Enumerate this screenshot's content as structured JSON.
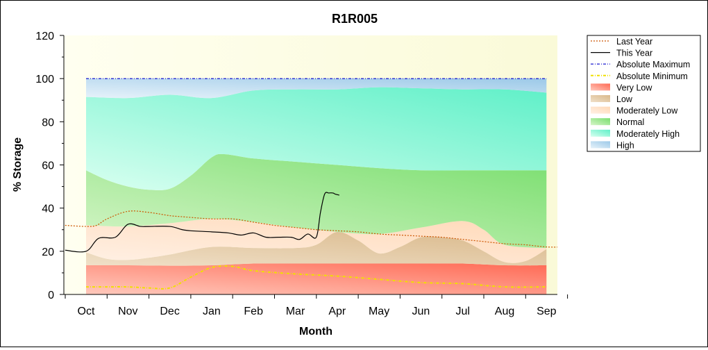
{
  "chart_data": {
    "type": "area",
    "title": "R1R005",
    "xlabel": "Month",
    "ylabel": "% Storage",
    "categories": [
      "Oct",
      "Nov",
      "Dec",
      "Jan",
      "Feb",
      "Mar",
      "Apr",
      "May",
      "Jun",
      "Jul",
      "Aug",
      "Sep"
    ],
    "ylim": [
      0,
      120
    ],
    "yticks": [
      0,
      20,
      40,
      60,
      80,
      100,
      120
    ],
    "grid": false,
    "legend_position": "right",
    "band_colors": {
      "very_low": "#ff6a55",
      "low": "#d9b88a",
      "moderately_low": "#ffd9b8",
      "normal": "#79de6e",
      "moderately_high": "#5ff0c8",
      "high": "#9cc9e8"
    },
    "bands": {
      "very_low_top": [
        [
          0,
          13.5
        ],
        [
          1,
          13.5
        ],
        [
          2,
          13.3
        ],
        [
          3,
          13.5
        ],
        [
          4,
          14.3
        ],
        [
          5,
          14.3
        ],
        [
          6,
          14.3
        ],
        [
          7,
          14.3
        ],
        [
          8,
          14.3
        ],
        [
          9,
          14.3
        ],
        [
          10,
          13.5
        ],
        [
          11,
          13.5
        ]
      ],
      "low_top": [
        [
          0,
          19.5
        ],
        [
          0.5,
          16.5
        ],
        [
          1,
          16
        ],
        [
          1.5,
          17
        ],
        [
          2,
          18.5
        ],
        [
          3,
          22
        ],
        [
          4,
          21.5
        ],
        [
          5,
          21.5
        ],
        [
          5.5,
          23
        ],
        [
          6,
          29
        ],
        [
          6.5,
          25
        ],
        [
          7,
          19
        ],
        [
          7.5,
          22
        ],
        [
          8,
          26.5
        ],
        [
          8.5,
          26.5
        ],
        [
          9,
          25
        ],
        [
          9.5,
          20
        ],
        [
          10,
          15
        ],
        [
          10.5,
          15.5
        ],
        [
          11,
          21
        ]
      ],
      "mod_low_top": [
        [
          0,
          32
        ],
        [
          1,
          31.5
        ],
        [
          2,
          33
        ],
        [
          3,
          35
        ],
        [
          4,
          33.5
        ],
        [
          5,
          31
        ],
        [
          6,
          29
        ],
        [
          7,
          28
        ],
        [
          8,
          31
        ],
        [
          9,
          34
        ],
        [
          9.5,
          30
        ],
        [
          10,
          23
        ],
        [
          11,
          21.5
        ]
      ],
      "normal_top": [
        [
          0,
          57.5
        ],
        [
          0.5,
          53
        ],
        [
          1,
          50
        ],
        [
          1.5,
          48.5
        ],
        [
          2,
          49
        ],
        [
          2.5,
          55
        ],
        [
          3,
          63.5
        ],
        [
          3.3,
          65
        ],
        [
          4,
          63
        ],
        [
          5,
          61.5
        ],
        [
          6,
          60
        ],
        [
          7,
          58.5
        ],
        [
          8,
          57.5
        ],
        [
          9,
          57.5
        ],
        [
          10,
          57.5
        ],
        [
          11,
          57.5
        ]
      ],
      "mod_high_top": [
        [
          0,
          91.5
        ],
        [
          1,
          91
        ],
        [
          2,
          92.5
        ],
        [
          3,
          91
        ],
        [
          4,
          94.5
        ],
        [
          5,
          95
        ],
        [
          6,
          95
        ],
        [
          7,
          96
        ],
        [
          8,
          95.5
        ],
        [
          9,
          95
        ],
        [
          10,
          95
        ],
        [
          11,
          93.5
        ]
      ],
      "high_top": [
        [
          0,
          100
        ],
        [
          11,
          100
        ]
      ]
    },
    "series": [
      {
        "name": "Last Year",
        "color": "#cc5500",
        "style": "dotted",
        "x": [
          -0.5,
          0,
          0.25,
          0.5,
          1,
          1.5,
          2,
          2.3,
          3,
          3.5,
          4,
          4.5,
          5,
          5.5,
          6,
          6.5,
          7,
          7.5,
          8,
          8.5,
          9,
          9.5,
          10,
          10.5,
          11,
          11.5
        ],
        "y": [
          32,
          31.5,
          32,
          35,
          38.5,
          38,
          36.5,
          36,
          35,
          35,
          33.5,
          32,
          31,
          30,
          29.5,
          29,
          28,
          27.5,
          27,
          26.5,
          25.5,
          24.5,
          23.5,
          23,
          22,
          22
        ]
      },
      {
        "name": "This Year",
        "color": "#000000",
        "style": "solid",
        "x": [
          -0.5,
          0,
          0.3,
          0.7,
          1,
          1.3,
          1.5,
          2,
          2.3,
          2.5,
          3,
          3.4,
          3.7,
          4,
          4.3,
          4.6,
          4.9,
          5.1,
          5.3,
          5.5,
          5.6,
          5.7,
          5.8,
          5.9,
          5.95,
          6.05
        ],
        "y": [
          20.5,
          20,
          26,
          26.5,
          32.5,
          31.5,
          31.5,
          31.5,
          30,
          29.5,
          29,
          28.5,
          27.5,
          28.5,
          26.5,
          26.5,
          26.5,
          25.5,
          28,
          26.5,
          38,
          46.5,
          47,
          47,
          46.5,
          46
        ]
      },
      {
        "name": "Absolute Maximum",
        "color": "#0000cc",
        "style": "dashdot",
        "x": [
          0,
          11
        ],
        "y": [
          100,
          100
        ]
      },
      {
        "name": "Absolute Minimum",
        "color": "#f0e000",
        "style": "dashdot",
        "x": [
          0,
          0.5,
          1,
          1.5,
          2,
          2.5,
          3,
          3.5,
          4,
          5,
          6,
          7,
          8,
          9,
          10,
          11
        ],
        "y": [
          3.5,
          3.5,
          3.5,
          3,
          3,
          8,
          12.5,
          13,
          11,
          9.5,
          8.5,
          7,
          5.5,
          5,
          3.5,
          3.5
        ]
      }
    ],
    "legend": [
      "Last Year",
      "This Year",
      "Absolute Maximum",
      "Absolute Minimum",
      "Very Low",
      "Low",
      "Moderately Low",
      "Normal",
      "Moderately High",
      "High"
    ]
  }
}
